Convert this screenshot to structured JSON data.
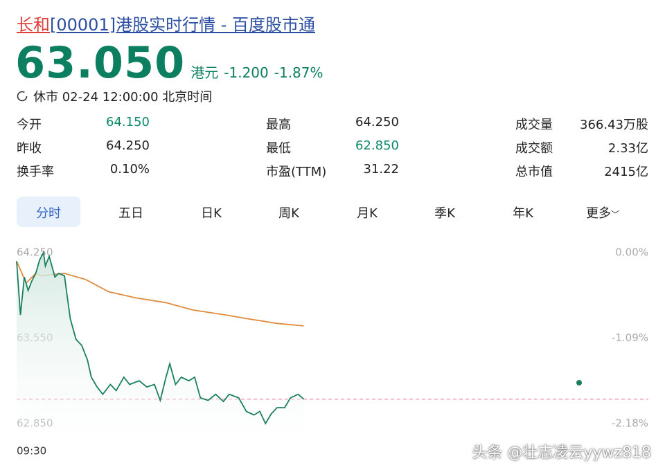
{
  "header": {
    "name": "长和",
    "title": "[00001]港股实时行情 - 百度股市通"
  },
  "quote": {
    "price": "63.050",
    "unit": "港元",
    "change": "-1.200",
    "change_pct": "-1.87%",
    "status": "休市 02-24 12:00:00 北京时间"
  },
  "stats": [
    [
      {
        "label": "今开",
        "value": "64.150",
        "color": "#0b8a6a"
      },
      {
        "label": "最高",
        "value": "64.250"
      },
      {
        "label": "成交量",
        "value": "366.43万股"
      }
    ],
    [
      {
        "label": "昨收",
        "value": "64.250"
      },
      {
        "label": "最低",
        "value": "62.850",
        "color": "#0b8a6a"
      },
      {
        "label": "成交额",
        "value": "2.33亿"
      }
    ],
    [
      {
        "label": "换手率",
        "value": "0.10%"
      },
      {
        "label": "市盈(TTM)",
        "value": "31.22"
      },
      {
        "label": "总市值",
        "value": "2415亿"
      }
    ]
  ],
  "tabs": [
    "分时",
    "五日",
    "日K",
    "周K",
    "月K",
    "季K",
    "年K",
    "更多"
  ],
  "chart_data": {
    "type": "line",
    "xlim": [
      0,
      330
    ],
    "xticks": [
      {
        "value": 0,
        "label": "09:30"
      }
    ],
    "ylim": [
      62.85,
      64.25
    ],
    "yticks": [
      {
        "value": 64.25,
        "label": "64.250"
      },
      {
        "value": 63.55,
        "label": "63.550"
      },
      {
        "value": 62.85,
        "label": "62.850"
      }
    ],
    "y2lim": [
      -2.18,
      0
    ],
    "y2ticks": [
      {
        "value": 0,
        "label": "0.00%"
      },
      {
        "value": -1.09,
        "label": "-1.09%"
      },
      {
        "value": -2.18,
        "label": "-2.18%"
      }
    ],
    "hline": {
      "value": 63.05,
      "color": "#f08aa0"
    },
    "series": [
      {
        "color": "#1a7f5e",
        "area": true,
        "x": [
          0,
          2,
          4,
          6,
          8,
          10,
          12,
          14,
          15,
          17,
          20,
          22,
          25,
          26,
          28,
          31,
          34,
          37,
          39,
          42,
          45,
          49,
          52,
          56,
          59,
          64,
          68,
          72,
          75,
          78,
          80,
          83,
          86,
          90,
          93,
          96,
          100,
          104,
          108,
          111,
          116,
          120,
          124,
          127,
          130,
          133,
          136,
          140,
          143,
          147,
          150
        ],
        "values": [
          64.18,
          63.74,
          64.05,
          63.94,
          64.02,
          64.08,
          64.19,
          64.25,
          64.14,
          64.22,
          64.05,
          64.08,
          64.06,
          63.94,
          63.71,
          63.54,
          63.49,
          63.37,
          63.23,
          63.15,
          63.09,
          63.17,
          63.12,
          63.23,
          63.17,
          63.2,
          63.15,
          63.17,
          63.04,
          63.23,
          63.34,
          63.17,
          63.23,
          63.2,
          63.23,
          63.06,
          63.04,
          63.09,
          63.03,
          63.09,
          63.06,
          62.95,
          62.92,
          62.95,
          62.85,
          62.93,
          62.98,
          62.98,
          63.06,
          63.09,
          63.05
        ]
      },
      {
        "color": "#e08a3c",
        "x": [
          0,
          5,
          10,
          13,
          25,
          36,
          48,
          62,
          78,
          92,
          109,
          120,
          136,
          150
        ],
        "values": [
          64.18,
          64.0,
          64.08,
          64.06,
          64.08,
          64.03,
          63.93,
          63.88,
          63.84,
          63.78,
          63.74,
          63.71,
          63.67,
          63.65
        ]
      }
    ]
  },
  "watermark": "头条 @壮志凌云yywz818"
}
